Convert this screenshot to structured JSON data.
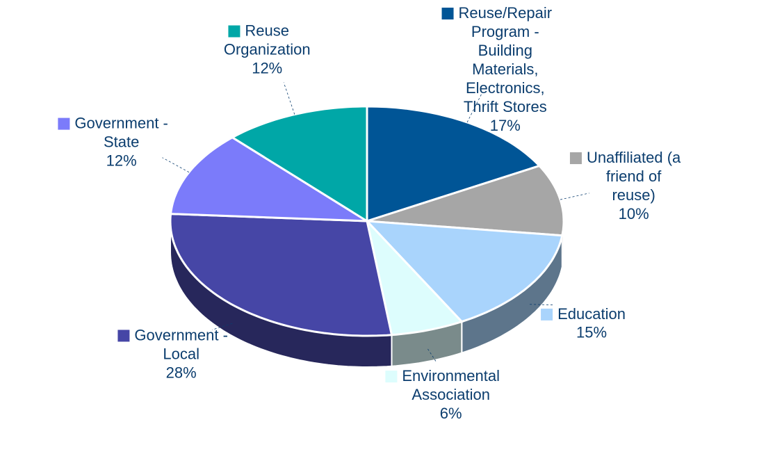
{
  "chart_data": {
    "type": "pie",
    "categories": [
      "Reuse/Repair Program - Building Materials, Electronics, Thrift Stores",
      "Unaffiliated (a friend of reuse)",
      "Education",
      "Environmental Association",
      "Government - Local",
      "Government - State",
      "Reuse Organization"
    ],
    "values": [
      17,
      10,
      15,
      6,
      28,
      12,
      12
    ],
    "value_labels": [
      "17%",
      "10%",
      "15%",
      "6%",
      "28%",
      "12%",
      "12%"
    ],
    "colors": [
      "#005596",
      "#a6a6a6",
      "#a9d4fc",
      "#ddfdfd",
      "#4646a6",
      "#7b7bfa",
      "#00a7a7"
    ]
  }
}
